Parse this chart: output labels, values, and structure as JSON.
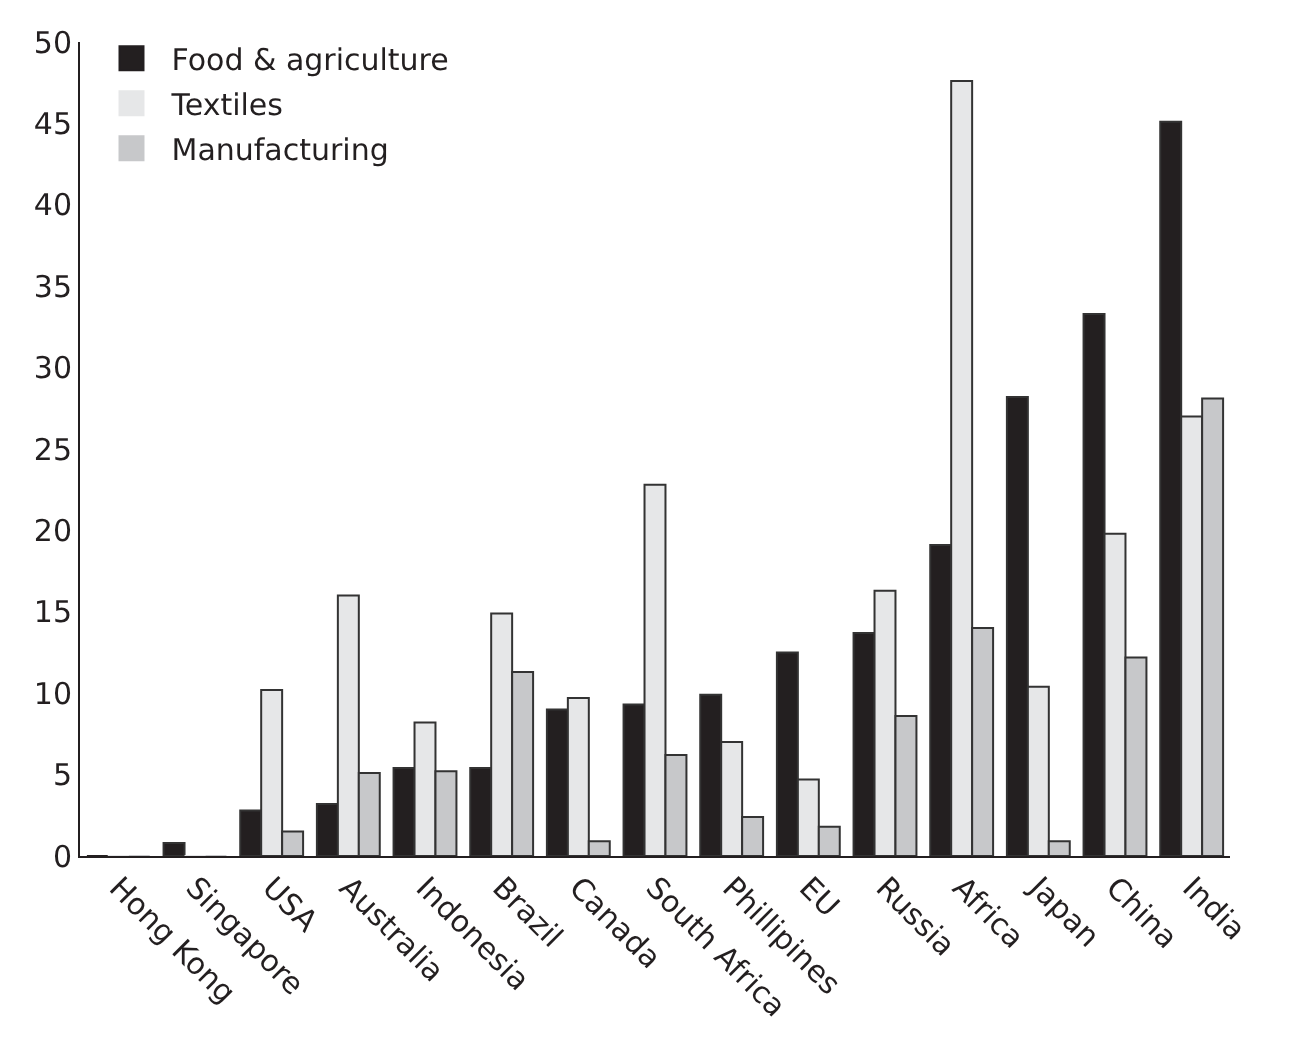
{
  "chart_data": {
    "type": "bar",
    "categories": [
      "Hong Kong",
      "Singapore",
      "USA",
      "Australia",
      "Indonesia",
      "Brazil",
      "Canada",
      "South Africa",
      "Phillipines",
      "EU",
      "Russia",
      "Africa",
      "Japan",
      "China",
      "India"
    ],
    "series": [
      {
        "name": "Food & agriculture",
        "color": "#231f20",
        "values": [
          0,
          0.8,
          2.8,
          3.2,
          5.4,
          5.4,
          9.0,
          9.3,
          9.9,
          12.5,
          13.7,
          19.1,
          28.2,
          33.3,
          45.1
        ]
      },
      {
        "name": "Textiles",
        "color": "#e6e7e8",
        "values": [
          0,
          0,
          10.2,
          16.0,
          8.2,
          14.9,
          9.7,
          22.8,
          7.0,
          4.7,
          16.3,
          47.6,
          10.4,
          19.8,
          27.0
        ]
      },
      {
        "name": "Manufacturing",
        "color": "#c7c8ca",
        "values": [
          0,
          0,
          1.5,
          5.1,
          5.2,
          11.3,
          0.9,
          6.2,
          2.4,
          1.8,
          8.6,
          14.0,
          0.9,
          12.2,
          28.1
        ]
      }
    ],
    "ylim": [
      0,
      50
    ],
    "yticks": [
      0,
      5,
      10,
      15,
      20,
      25,
      30,
      35,
      40,
      45,
      50
    ],
    "legend": "top left"
  }
}
